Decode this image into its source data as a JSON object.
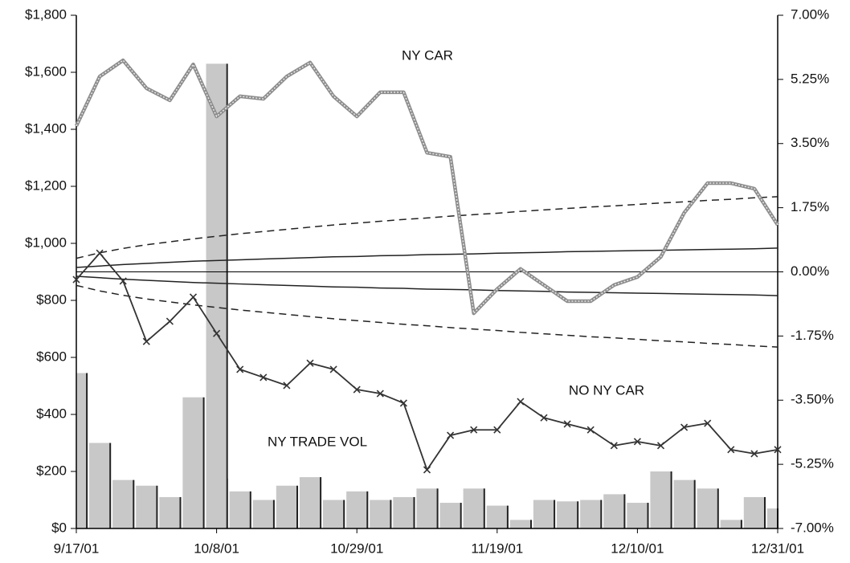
{
  "chart_data": {
    "type": "combo",
    "categories": [
      "9/17/01",
      null,
      null,
      null,
      null,
      null,
      "10/8/01",
      null,
      null,
      null,
      null,
      null,
      "10/29/01",
      null,
      null,
      null,
      null,
      null,
      "11/19/01",
      null,
      null,
      null,
      null,
      null,
      "12/10/01",
      null,
      null,
      null,
      null,
      null,
      "12/31/01"
    ],
    "ylim": [
      0,
      1800
    ],
    "yticks": [
      {
        "value": 0,
        "label": "$0"
      },
      {
        "value": 200,
        "label": "$200"
      },
      {
        "value": 400,
        "label": "$400"
      },
      {
        "value": 600,
        "label": "$600"
      },
      {
        "value": 800,
        "label": "$800"
      },
      {
        "value": 1000,
        "label": "$1,000"
      },
      {
        "value": 1200,
        "label": "$1,200"
      },
      {
        "value": 1400,
        "label": "$1,400"
      },
      {
        "value": 1600,
        "label": "$1,600"
      },
      {
        "value": 1800,
        "label": "$1,800"
      }
    ],
    "y2lim": [
      -7,
      7
    ],
    "y2ticks": [
      {
        "value": -7,
        "label": "-7.00%"
      },
      {
        "value": -5.25,
        "label": "-5.25%"
      },
      {
        "value": -3.5,
        "label": "-3.50%"
      },
      {
        "value": -1.75,
        "label": "-1.75%"
      },
      {
        "value": 0,
        "label": "0.00%"
      },
      {
        "value": 1.75,
        "label": "1.75%"
      },
      {
        "value": 3.5,
        "label": "3.50%"
      },
      {
        "value": 5.25,
        "label": "5.25%"
      },
      {
        "value": 7,
        "label": "7.00%"
      }
    ],
    "grid": false,
    "series": [
      {
        "name": "NY TRADE VOL",
        "type": "bar",
        "color": "#c8c8c8",
        "values": [
          545,
          300,
          170,
          150,
          110,
          460,
          175,
          130,
          100,
          150,
          180,
          100,
          130,
          100,
          110,
          140,
          90,
          140,
          80,
          30,
          100,
          95,
          100,
          120,
          90,
          200,
          170,
          140,
          30,
          110,
          70
        ]
      },
      {
        "type": "bar",
        "color": "#c8c8c8",
        "values": [
          null,
          null,
          null,
          null,
          null,
          null,
          1630,
          null,
          null,
          null,
          null,
          null,
          null,
          null,
          null,
          null,
          null,
          null,
          null,
          null,
          null,
          null,
          null,
          null,
          null,
          null,
          null,
          null,
          null,
          null,
          null
        ]
      },
      {
        "type": "line",
        "style": "dashed",
        "axis": "y2",
        "color": "#222222",
        "values": [
          0.37,
          0.52,
          0.64,
          0.74,
          0.82,
          0.9,
          0.97,
          1.04,
          1.1,
          1.16,
          1.22,
          1.28,
          1.33,
          1.38,
          1.43,
          1.47,
          1.52,
          1.56,
          1.6,
          1.65,
          1.69,
          1.73,
          1.77,
          1.8,
          1.84,
          1.88,
          1.91,
          1.95,
          1.98,
          2.02,
          2.05
        ]
      },
      {
        "type": "line",
        "style": "dashed",
        "axis": "y2",
        "color": "#222222",
        "values": [
          -0.37,
          -0.52,
          -0.64,
          -0.74,
          -0.82,
          -0.9,
          -0.97,
          -1.04,
          -1.1,
          -1.16,
          -1.22,
          -1.28,
          -1.33,
          -1.38,
          -1.43,
          -1.47,
          -1.52,
          -1.56,
          -1.6,
          -1.65,
          -1.69,
          -1.73,
          -1.77,
          -1.8,
          -1.84,
          -1.88,
          -1.91,
          -1.95,
          -1.98,
          -2.02,
          -2.05
        ]
      },
      {
        "type": "line",
        "style": "solid",
        "axis": "y2",
        "color": "#222222",
        "values": [
          0.12,
          0.16,
          0.2,
          0.23,
          0.26,
          0.29,
          0.31,
          0.33,
          0.35,
          0.37,
          0.39,
          0.41,
          0.42,
          0.44,
          0.45,
          0.47,
          0.48,
          0.49,
          0.51,
          0.52,
          0.53,
          0.55,
          0.56,
          0.57,
          0.58,
          0.59,
          0.6,
          0.61,
          0.62,
          0.63,
          0.65
        ]
      },
      {
        "type": "line",
        "style": "solid",
        "axis": "y2",
        "color": "#222222",
        "values": [
          -0.12,
          -0.16,
          -0.2,
          -0.23,
          -0.26,
          -0.29,
          -0.31,
          -0.33,
          -0.35,
          -0.37,
          -0.39,
          -0.41,
          -0.42,
          -0.44,
          -0.45,
          -0.47,
          -0.48,
          -0.49,
          -0.51,
          -0.52,
          -0.53,
          -0.55,
          -0.56,
          -0.57,
          -0.58,
          -0.59,
          -0.6,
          -0.61,
          -0.62,
          -0.63,
          -0.65
        ]
      },
      {
        "name": "NY CAR",
        "type": "line",
        "style": "thick",
        "axis": "y2",
        "color": "#8c8c8c",
        "values": [
          3.98,
          5.33,
          5.77,
          5.01,
          4.68,
          5.66,
          4.24,
          4.79,
          4.72,
          5.33,
          5.71,
          4.79,
          4.24,
          4.9,
          4.9,
          3.25,
          3.14,
          -1.13,
          -0.47,
          0.08,
          -0.36,
          -0.8,
          -0.8,
          -0.36,
          -0.14,
          0.41,
          1.61,
          2.42,
          2.42,
          2.27,
          1.28
        ]
      },
      {
        "name": "NO NY CAR",
        "type": "line",
        "style": "markers",
        "axis": "y2",
        "color": "#333333",
        "values": [
          -0.21,
          0.51,
          -0.25,
          -1.9,
          -1.35,
          -0.69,
          -1.68,
          -2.66,
          -2.88,
          -3.1,
          -2.49,
          -2.66,
          -3.21,
          -3.32,
          -3.58,
          -5.4,
          -4.46,
          -4.31,
          -4.31,
          -3.54,
          -3.98,
          -4.15,
          -4.31,
          -4.74,
          -4.63,
          -4.74,
          -4.24,
          -4.13,
          -4.85,
          -4.96,
          -4.85
        ]
      }
    ]
  }
}
